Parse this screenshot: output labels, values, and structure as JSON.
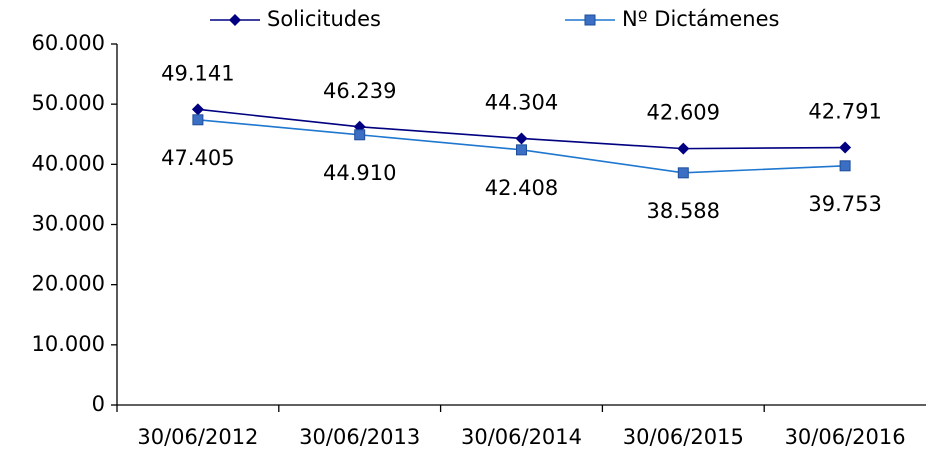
{
  "chart_data": {
    "type": "line",
    "categories": [
      "30/06/2012",
      "30/06/2013",
      "30/06/2014",
      "30/06/2015",
      "30/06/2016"
    ],
    "series": [
      {
        "name": "Solicitudes",
        "color": "#000080",
        "marker": "diamond",
        "values": [
          49141,
          46239,
          44304,
          42609,
          42791
        ],
        "value_labels": [
          "49.141",
          "46.239",
          "44.304",
          "42.609",
          "42.791"
        ]
      },
      {
        "name": "Nº Dictámenes",
        "color": "#1f77d0",
        "marker": "square",
        "values": [
          47405,
          44910,
          42408,
          38588,
          39753
        ],
        "value_labels": [
          "47.405",
          "44.910",
          "42.408",
          "38.588",
          "39.753"
        ]
      }
    ],
    "ylim": [
      0,
      60000
    ],
    "yticks": [
      0,
      {
        "value": 10000,
        "label": "10.000"
      },
      {
        "value": 20000,
        "label": "20.000"
      },
      {
        "value": 30000,
        "label": "30.000"
      },
      {
        "value": 40000,
        "label": "40.000"
      },
      {
        "value": 50000,
        "label": "50.000"
      },
      {
        "value": 60000,
        "label": "60.000"
      }
    ],
    "grid": false,
    "legend": "top"
  }
}
